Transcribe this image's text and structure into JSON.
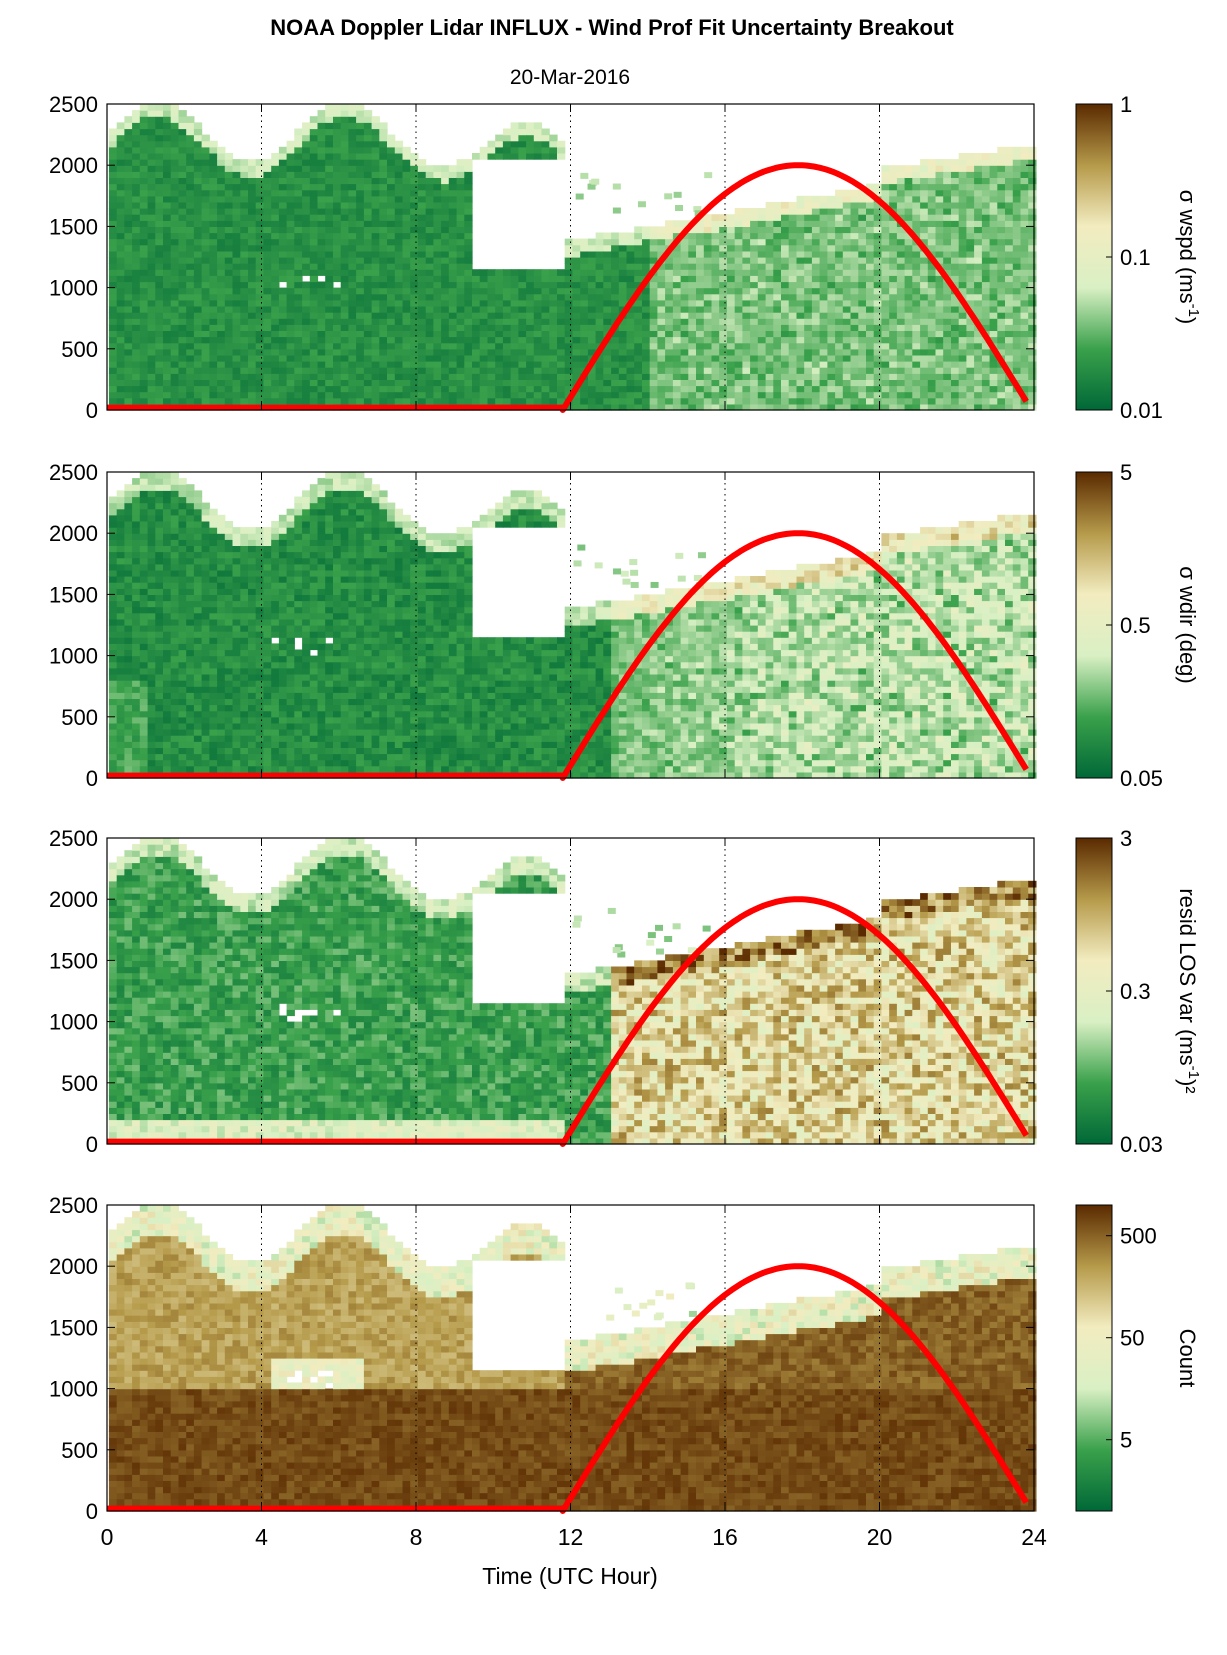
{
  "figure": {
    "title": "NOAA Doppler Lidar INFLUX - Wind Prof Fit Uncertainty Breakout",
    "subtitle": "20-Mar-2016",
    "xlabel": "Time (UTC Hour)",
    "x_ticks": [
      "0",
      "4",
      "8",
      "12",
      "16",
      "20",
      "24"
    ],
    "y_ticks": [
      "0",
      "500",
      "1000",
      "1500",
      "2000",
      "2500"
    ]
  },
  "colors": {
    "dark_green": "#006837",
    "mid_green": "#3aa14b",
    "pale_green": "#d9f0c4",
    "cream": "#f2ecc0",
    "tan": "#b59a4a",
    "dark_brown": "#5a2a00",
    "curve": "#ff0000"
  },
  "chart_data": [
    {
      "type": "heatmap",
      "panel": "wspd",
      "xlim": [
        0,
        24
      ],
      "ylim": [
        0,
        2500
      ],
      "colorbar": {
        "scale": "log",
        "range": [
          0.01,
          1
        ],
        "tick_labels": [
          "1",
          "0.1",
          "0.01"
        ],
        "label_main": "σ wspd (ms",
        "label_sup": "-1",
        "label_end": ")"
      },
      "curve": {
        "rise_hour": 11.8,
        "peak_hour": 17.9,
        "peak_height": 2000,
        "set_hour": 23.8,
        "end_height": 70
      }
    },
    {
      "type": "heatmap",
      "panel": "wdir",
      "xlim": [
        0,
        24
      ],
      "ylim": [
        0,
        2500
      ],
      "colorbar": {
        "scale": "log",
        "range": [
          0.05,
          5
        ],
        "tick_labels": [
          "5",
          "0.5",
          "0.05"
        ],
        "label_main": "σ wdir (deg)",
        "label_sup": "",
        "label_end": ""
      },
      "curve": {
        "rise_hour": 11.8,
        "peak_hour": 17.9,
        "peak_height": 2000,
        "set_hour": 23.8,
        "end_height": 70
      }
    },
    {
      "type": "heatmap",
      "panel": "resid",
      "xlim": [
        0,
        24
      ],
      "ylim": [
        0,
        2500
      ],
      "colorbar": {
        "scale": "log",
        "range": [
          0.03,
          3
        ],
        "tick_labels": [
          "3",
          "0.3",
          "0.03"
        ],
        "label_main": "resid LOS var (ms",
        "label_sup": "-1",
        "label_end": ")²"
      },
      "curve": {
        "rise_hour": 11.8,
        "peak_hour": 17.9,
        "peak_height": 2000,
        "set_hour": 23.8,
        "end_height": 70
      }
    },
    {
      "type": "heatmap",
      "panel": "count",
      "xlim": [
        0,
        24
      ],
      "ylim": [
        0,
        2500
      ],
      "colorbar": {
        "scale": "log",
        "range": [
          1,
          1000
        ],
        "tick_labels": [
          "500",
          "50",
          "5"
        ],
        "label_main": "Count",
        "label_sup": "",
        "label_end": ""
      },
      "curve": {
        "rise_hour": 11.8,
        "peak_hour": 17.9,
        "peak_height": 2000,
        "set_hour": 23.8,
        "end_height": 70
      }
    }
  ]
}
